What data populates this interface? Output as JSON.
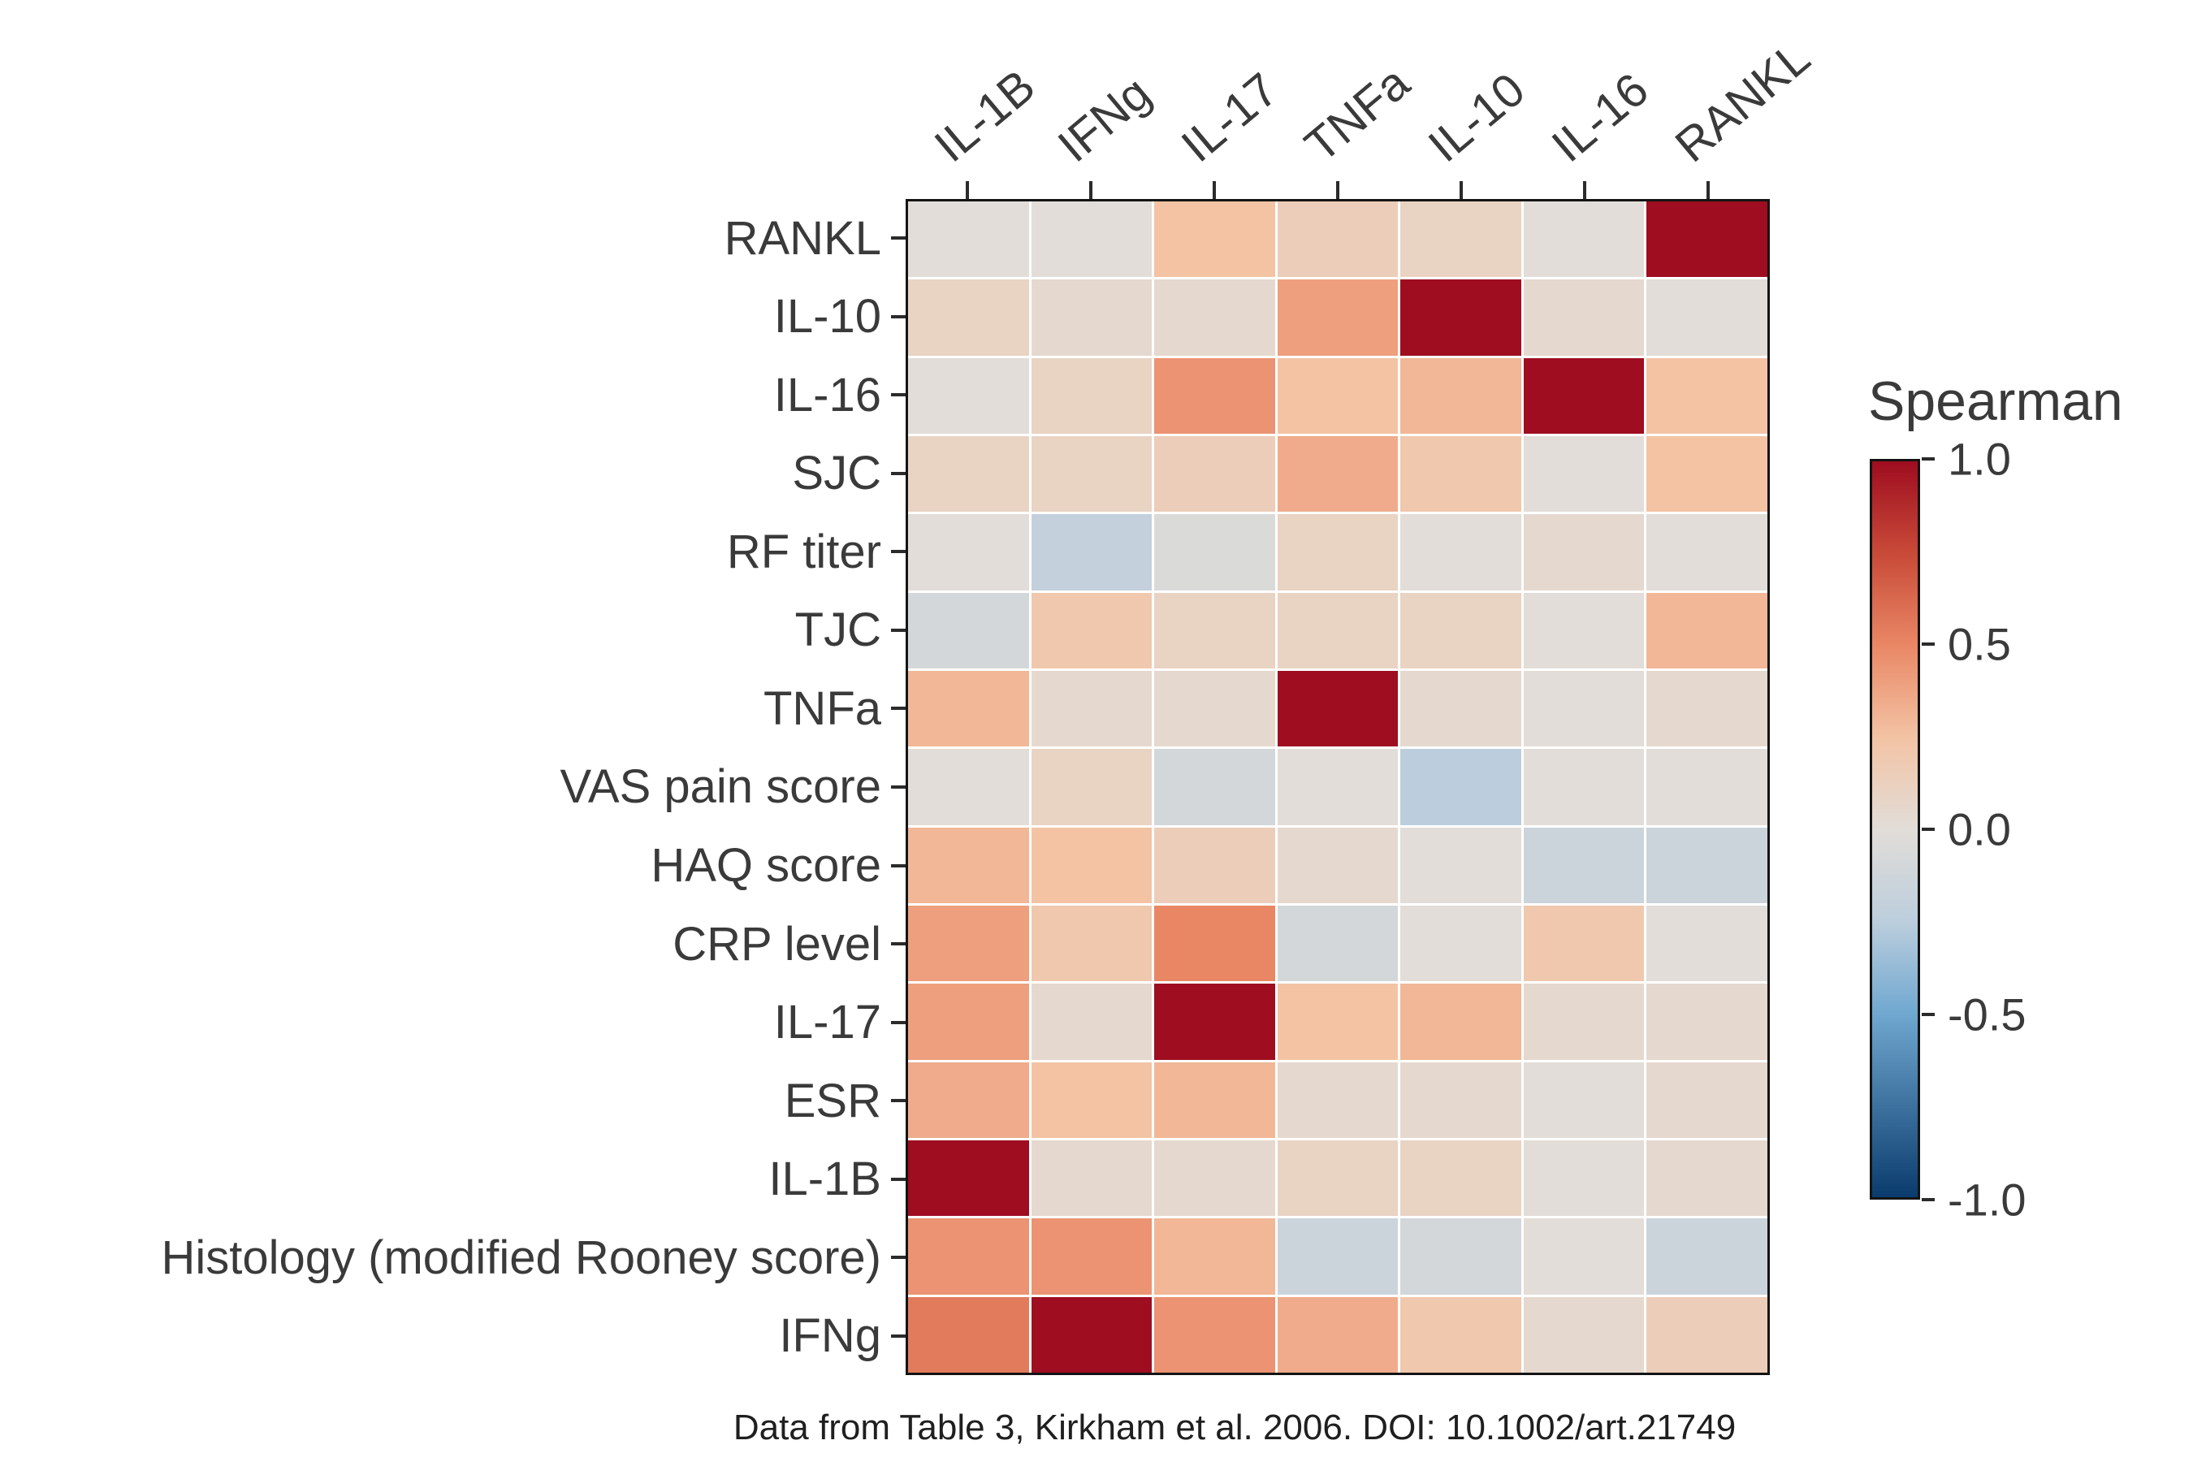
{
  "chart_data": {
    "type": "heatmap",
    "legend_title": "Spearman",
    "caption": "Data from Table 3, Kirkham et al. 2006. DOI: 10.1002/art.21749",
    "columns": [
      "IL-1B",
      "IFNg",
      "IL-17",
      "TNFa",
      "IL-10",
      "IL-16",
      "RANKL"
    ],
    "rows": [
      "RANKL",
      "IL-10",
      "IL-16",
      "SJC",
      "RF titer",
      "TJC",
      "TNFa",
      "VAS pain score",
      "HAQ score",
      "CRP level",
      "IL-17",
      "ESR",
      "IL-1B",
      "Histology (modified Rooney score)",
      "IFNg"
    ],
    "values": [
      [
        0.0,
        0.0,
        0.25,
        0.15,
        0.1,
        0.0,
        1.0
      ],
      [
        0.1,
        0.05,
        0.05,
        0.4,
        1.0,
        0.05,
        0.0
      ],
      [
        0.0,
        0.1,
        0.45,
        0.25,
        0.3,
        1.0,
        0.25
      ],
      [
        0.1,
        0.1,
        0.15,
        0.35,
        0.2,
        0.0,
        0.25
      ],
      [
        0.0,
        -0.2,
        -0.05,
        0.1,
        0.0,
        0.05,
        0.0
      ],
      [
        -0.1,
        0.2,
        0.1,
        0.1,
        0.1,
        0.0,
        0.3
      ],
      [
        0.3,
        0.05,
        0.05,
        1.0,
        0.05,
        0.0,
        0.05
      ],
      [
        0.0,
        0.1,
        -0.1,
        0.0,
        -0.25,
        0.0,
        0.0
      ],
      [
        0.3,
        0.25,
        0.15,
        0.05,
        0.0,
        -0.15,
        -0.15
      ],
      [
        0.4,
        0.2,
        0.5,
        -0.1,
        0.0,
        0.2,
        0.0
      ],
      [
        0.4,
        0.05,
        1.0,
        0.25,
        0.3,
        0.05,
        0.05
      ],
      [
        0.35,
        0.25,
        0.3,
        0.05,
        0.05,
        0.0,
        0.05
      ],
      [
        1.0,
        0.05,
        0.05,
        0.1,
        0.1,
        0.0,
        0.05
      ],
      [
        0.45,
        0.45,
        0.3,
        -0.15,
        -0.1,
        0.0,
        -0.15
      ],
      [
        0.55,
        1.0,
        0.45,
        0.35,
        0.2,
        0.05,
        0.15
      ]
    ],
    "value_range": [
      -1,
      1
    ],
    "colorbar_ticks": [
      {
        "value": 1.0,
        "label": "1.0"
      },
      {
        "value": 0.5,
        "label": "0.5"
      },
      {
        "value": 0.0,
        "label": "0.0"
      },
      {
        "value": -0.5,
        "label": "-0.5"
      },
      {
        "value": -1.0,
        "label": "-1.0"
      }
    ],
    "colormap_stops": [
      {
        "value": 1.0,
        "color": "#9e0d20"
      },
      {
        "value": 0.75,
        "color": "#c84a38"
      },
      {
        "value": 0.5,
        "color": "#e98765"
      },
      {
        "value": 0.25,
        "color": "#f3c3a4"
      },
      {
        "value": 0.0,
        "color": "#e2ddd8"
      },
      {
        "value": -0.25,
        "color": "#bccedd"
      },
      {
        "value": -0.5,
        "color": "#70a8d0"
      },
      {
        "value": -1.0,
        "color": "#0a3b6d"
      }
    ],
    "legend_position": "right",
    "grid": false
  }
}
